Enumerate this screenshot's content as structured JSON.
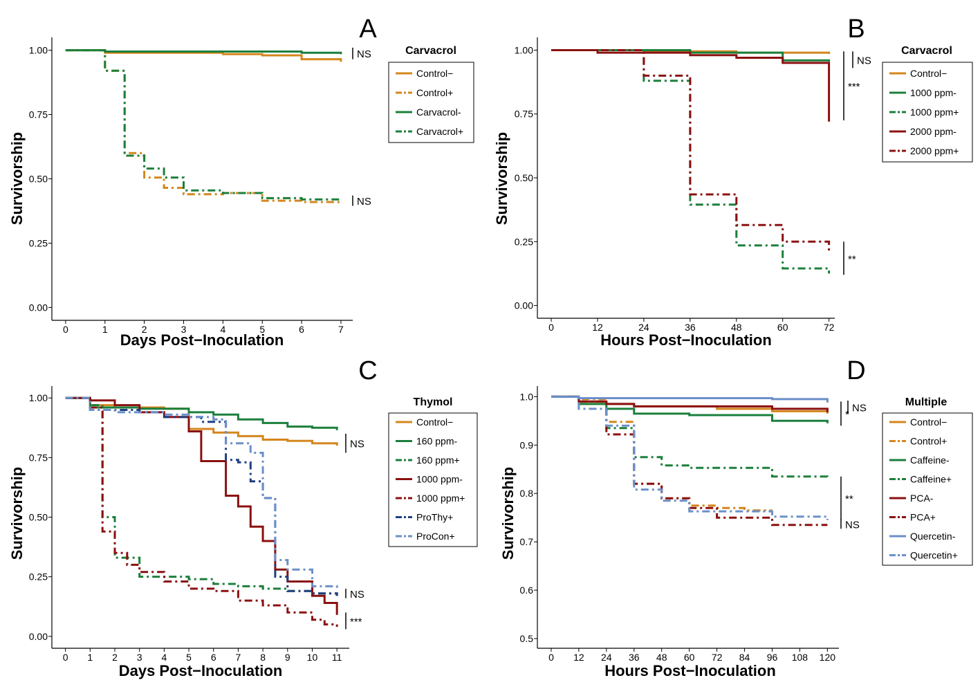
{
  "chart_data": [
    {
      "panel": "A",
      "type": "line",
      "step": true,
      "xlabel": "Days Post−Inoculation",
      "ylabel": "Survivorship",
      "xlim": [
        -0.35,
        7.3
      ],
      "ylim": [
        -0.05,
        1.05
      ],
      "xticks": [
        0,
        1,
        2,
        3,
        4,
        5,
        6,
        7
      ],
      "yticks": [
        0,
        0.25,
        0.5,
        0.75,
        1
      ],
      "ytick_labels": [
        "0.00",
        "0.25",
        "0.50",
        "0.75",
        "1.00"
      ],
      "legend": {
        "title": "Carvacrol",
        "position": "right"
      },
      "series": [
        {
          "name": "Control−",
          "color": "#D4861C",
          "dash": "solid",
          "x": [
            0,
            1,
            4,
            5,
            6,
            7
          ],
          "y": [
            1,
            0.99,
            0.985,
            0.98,
            0.965,
            0.955
          ]
        },
        {
          "name": "Control+",
          "color": "#D4861C",
          "dash": "dashdot",
          "x": [
            0,
            1,
            1.5,
            2,
            2.5,
            3,
            4,
            5,
            6,
            7
          ],
          "y": [
            1,
            0.92,
            0.6,
            0.505,
            0.465,
            0.44,
            0.445,
            0.415,
            0.41,
            0.405
          ]
        },
        {
          "name": "Carvacrol-",
          "color": "#1B7F3B",
          "dash": "solid",
          "x": [
            0,
            1,
            5,
            6,
            7
          ],
          "y": [
            1,
            0.995,
            0.995,
            0.99,
            0.985
          ]
        },
        {
          "name": "Carvacrol+",
          "color": "#1B7F3B",
          "dash": "dashdot",
          "x": [
            0,
            1,
            1.5,
            2,
            2.5,
            3,
            4,
            5,
            6,
            7
          ],
          "y": [
            1,
            0.92,
            0.59,
            0.54,
            0.505,
            0.455,
            0.445,
            0.425,
            0.42,
            0.415
          ]
        }
      ],
      "annotations": [
        {
          "label": "NS",
          "y": [
            0.965,
            1.01
          ]
        },
        {
          "label": "NS",
          "y": [
            0.395,
            0.435
          ]
        }
      ]
    },
    {
      "panel": "B",
      "type": "line",
      "step": true,
      "xlabel": "Hours Post−Inoculation",
      "ylabel": "Survivorship",
      "xlim": [
        -3.6,
        73.5
      ],
      "ylim": [
        -0.05,
        1.05
      ],
      "xticks": [
        0,
        12,
        24,
        36,
        48,
        60,
        72
      ],
      "yticks": [
        0,
        0.25,
        0.5,
        0.75,
        1
      ],
      "ytick_labels": [
        "0.00",
        "0.25",
        "0.50",
        "0.75",
        "1.00"
      ],
      "legend": {
        "title": "Carvacrol",
        "position": "right"
      },
      "series": [
        {
          "name": "Control−",
          "color": "#D4861C",
          "dash": "solid",
          "x": [
            0,
            24,
            48,
            72
          ],
          "y": [
            1,
            0.995,
            0.99,
            0.985
          ]
        },
        {
          "name": "1000 ppm-",
          "color": "#1B7F3B",
          "dash": "solid",
          "x": [
            0,
            36,
            60,
            72
          ],
          "y": [
            1,
            0.99,
            0.96,
            0.955
          ]
        },
        {
          "name": "1000 ppm+",
          "color": "#1B7F3B",
          "dash": "dashdot",
          "x": [
            0,
            24,
            36,
            48,
            60,
            72
          ],
          "y": [
            1,
            0.88,
            0.395,
            0.235,
            0.145,
            0.125
          ]
        },
        {
          "name": "2000 ppm-",
          "color": "#8B1010",
          "dash": "solid",
          "x": [
            0,
            12,
            36,
            48,
            60,
            72
          ],
          "y": [
            1,
            0.99,
            0.98,
            0.97,
            0.95,
            0.72
          ]
        },
        {
          "name": "2000 ppm+",
          "color": "#8B1010",
          "dash": "dashdot",
          "x": [
            0,
            24,
            36,
            48,
            60,
            72
          ],
          "y": [
            1,
            0.9,
            0.435,
            0.315,
            0.25,
            0.21
          ]
        }
      ],
      "annotations": [
        {
          "label": "NS",
          "y": [
            0.93,
            0.995
          ]
        },
        {
          "label": "***",
          "y": [
            0.725,
            0.995
          ]
        },
        {
          "label": "**",
          "y": [
            0.12,
            0.25
          ]
        }
      ]
    },
    {
      "panel": "C",
      "type": "line",
      "step": true,
      "xlabel": "Days Post−Inoculation",
      "ylabel": "Survivorship",
      "xlim": [
        -0.55,
        11.5
      ],
      "ylim": [
        -0.05,
        1.05
      ],
      "xticks": [
        0,
        1,
        2,
        3,
        4,
        5,
        6,
        7,
        8,
        9,
        10,
        11
      ],
      "yticks": [
        0,
        0.25,
        0.5,
        0.75,
        1
      ],
      "ytick_labels": [
        "0.00",
        "0.25",
        "0.50",
        "0.75",
        "1.00"
      ],
      "legend": {
        "title": "Thymol",
        "position": "right"
      },
      "series": [
        {
          "name": "Control−",
          "color": "#D4861C",
          "dash": "solid",
          "x": [
            0,
            1,
            2,
            4,
            5,
            6,
            7,
            8,
            9,
            10,
            11
          ],
          "y": [
            1,
            0.97,
            0.96,
            0.955,
            0.87,
            0.855,
            0.84,
            0.825,
            0.82,
            0.81,
            0.8
          ]
        },
        {
          "name": "160 ppm-",
          "color": "#1B7F3B",
          "dash": "solid",
          "x": [
            0,
            1,
            3,
            5,
            6,
            7,
            8,
            9,
            10,
            11
          ],
          "y": [
            1,
            0.96,
            0.955,
            0.94,
            0.93,
            0.91,
            0.895,
            0.88,
            0.875,
            0.865
          ]
        },
        {
          "name": "160 ppm+",
          "color": "#1B7F3B",
          "dash": "dashdot",
          "x": [
            0,
            1,
            1.5,
            2,
            3,
            5,
            6,
            7,
            8,
            9,
            10,
            11
          ],
          "y": [
            1,
            0.97,
            0.5,
            0.33,
            0.25,
            0.24,
            0.22,
            0.21,
            0.2,
            0.19,
            0.18,
            0.17
          ]
        },
        {
          "name": "1000 ppm-",
          "color": "#8B1010",
          "dash": "solid",
          "x": [
            0,
            1,
            2,
            3,
            4,
            5,
            5.5,
            6.5,
            7,
            7.5,
            8,
            8.5,
            9,
            10,
            10.5,
            11
          ],
          "y": [
            1,
            0.99,
            0.97,
            0.94,
            0.92,
            0.86,
            0.735,
            0.59,
            0.545,
            0.46,
            0.4,
            0.28,
            0.23,
            0.17,
            0.14,
            0.09
          ]
        },
        {
          "name": "1000 ppm+",
          "color": "#8B1010",
          "dash": "dashdot",
          "x": [
            0,
            1,
            1.5,
            2,
            2.5,
            3,
            4,
            5,
            6,
            7,
            8,
            9,
            10,
            10.5,
            11
          ],
          "y": [
            1,
            0.96,
            0.44,
            0.35,
            0.3,
            0.27,
            0.23,
            0.2,
            0.19,
            0.15,
            0.13,
            0.1,
            0.07,
            0.05,
            0.04
          ]
        },
        {
          "name": "ProThy+",
          "color": "#1F3F7F",
          "dash": "dashdot",
          "x": [
            0,
            1,
            2,
            3,
            4,
            5.5,
            6.5,
            7,
            7.5,
            8,
            8.5,
            9,
            10,
            11
          ],
          "y": [
            1,
            0.95,
            0.95,
            0.94,
            0.92,
            0.9,
            0.74,
            0.73,
            0.65,
            0.58,
            0.25,
            0.19,
            0.18,
            0.17
          ]
        },
        {
          "name": "ProCon+",
          "color": "#6B8FC9",
          "dash": "dashdot",
          "x": [
            0,
            1,
            2,
            4,
            5,
            6,
            6.5,
            7.5,
            8,
            8.5,
            9,
            10,
            11
          ],
          "y": [
            1,
            0.95,
            0.94,
            0.93,
            0.92,
            0.91,
            0.81,
            0.77,
            0.58,
            0.32,
            0.28,
            0.21,
            0.2
          ]
        }
      ],
      "annotations": [
        {
          "label": "NS",
          "y": [
            0.77,
            0.85
          ]
        },
        {
          "label": "NS",
          "y": [
            0.16,
            0.2
          ]
        },
        {
          "label": "***",
          "y": [
            0.03,
            0.1
          ]
        }
      ]
    },
    {
      "panel": "D",
      "type": "line",
      "step": true,
      "xlabel": "Hours Post−Inoculation",
      "ylabel": "Survivorship",
      "xlim": [
        -6,
        125
      ],
      "ylim": [
        0.48,
        1.022
      ],
      "xticks": [
        0,
        12,
        24,
        36,
        48,
        60,
        72,
        84,
        96,
        108,
        120
      ],
      "yticks": [
        0.5,
        0.6,
        0.7,
        0.8,
        0.9,
        1.0
      ],
      "ytick_labels": [
        "0.5",
        "0.6",
        "0.7",
        "0.8",
        "0.9",
        "1.0"
      ],
      "legend": {
        "title": "Multiple",
        "position": "right"
      },
      "series": [
        {
          "name": "Control−",
          "color": "#D4861C",
          "dash": "solid",
          "x": [
            0,
            12,
            24,
            36,
            72,
            96,
            120
          ],
          "y": [
            1,
            0.985,
            0.985,
            0.98,
            0.975,
            0.97,
            0.965
          ]
        },
        {
          "name": "Control+",
          "color": "#D4861C",
          "dash": "dashdot",
          "x": [
            0,
            12,
            24,
            36,
            48,
            60,
            72,
            84,
            96
          ],
          "y": [
            1,
            0.995,
            0.948,
            0.82,
            0.79,
            0.775,
            0.77,
            0.765,
            0.765
          ]
        },
        {
          "name": "Caffeine-",
          "color": "#1B7F3B",
          "dash": "solid",
          "x": [
            0,
            12,
            24,
            36,
            60,
            96,
            120
          ],
          "y": [
            1,
            0.985,
            0.975,
            0.965,
            0.962,
            0.95,
            0.945
          ]
        },
        {
          "name": "Caffeine+",
          "color": "#1B7F3B",
          "dash": "dashdot",
          "x": [
            0,
            12,
            24,
            36,
            48,
            60,
            96,
            120
          ],
          "y": [
            1,
            0.99,
            0.935,
            0.875,
            0.858,
            0.853,
            0.835,
            0.83
          ]
        },
        {
          "name": "PCA-",
          "color": "#8B1010",
          "dash": "solid",
          "x": [
            0,
            12,
            24,
            36,
            96,
            120
          ],
          "y": [
            1,
            0.99,
            0.985,
            0.98,
            0.975,
            0.968
          ]
        },
        {
          "name": "PCA+",
          "color": "#8B1010",
          "dash": "dashdot",
          "x": [
            0,
            12,
            24,
            36,
            48,
            60,
            72,
            96,
            120
          ],
          "y": [
            1,
            0.99,
            0.922,
            0.82,
            0.79,
            0.77,
            0.75,
            0.735,
            0.735
          ]
        },
        {
          "name": "Quercetin-",
          "color": "#6B8FC9",
          "dash": "solid",
          "x": [
            0,
            12,
            96,
            120
          ],
          "y": [
            1,
            0.997,
            0.995,
            0.988
          ]
        },
        {
          "name": "Quercetin+",
          "color": "#6B8FC9",
          "dash": "dashdot",
          "x": [
            0,
            12,
            24,
            36,
            48,
            60,
            96,
            120
          ],
          "y": [
            1,
            0.975,
            0.94,
            0.808,
            0.785,
            0.763,
            0.752,
            0.745
          ]
        }
      ],
      "annotations": [
        {
          "label": "NS",
          "y": [
            0.965,
            0.992
          ]
        },
        {
          "label": "*",
          "y": [
            0.94,
            0.99
          ]
        },
        {
          "label": "**",
          "y": [
            0.745,
            0.835
          ]
        },
        {
          "label": "NS",
          "y": [
            0.727,
            0.747
          ]
        }
      ]
    }
  ]
}
